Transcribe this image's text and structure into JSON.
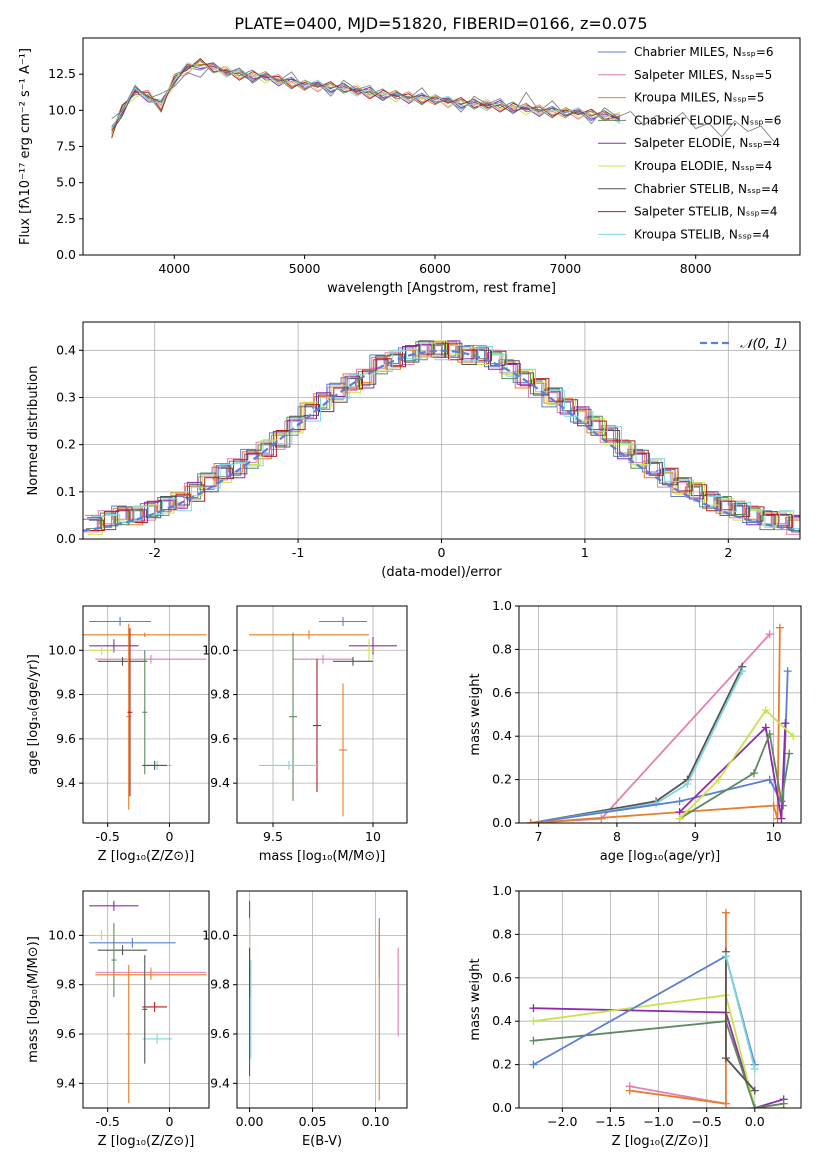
{
  "title": "PLATE=0400, MJD=51820, FIBERID=0166, z=0.075",
  "colors": {
    "chabrier_miles": "#5b7fd4",
    "salpeter_miles": "#e27fb4",
    "kroupa_miles": "#e87d2c",
    "chabrier_elodie": "#5f8a5f",
    "salpeter_elodie": "#8f2aa8",
    "kroupa_elodie": "#c8e34c",
    "chabrier_stelib": "#555555",
    "salpeter_stelib": "#b01e1e",
    "kroupa_stelib": "#7fd6dc",
    "grid": "#b0b0b0"
  },
  "chart_data": [
    {
      "id": "spectrum",
      "type": "line",
      "xlabel": "wavelength [Angstrom, rest frame]",
      "ylabel": "Flux [fλ10⁻¹⁷ erg cm⁻² s⁻¹ A⁻¹]",
      "xlim": [
        3300,
        8800
      ],
      "ylim": [
        0,
        15
      ],
      "xticks": [
        4000,
        5000,
        6000,
        7000,
        8000
      ],
      "yticks": [
        0.0,
        2.5,
        5.0,
        7.5,
        10.0,
        12.5
      ],
      "grid": false,
      "legend_position": "top-right",
      "data_line": {
        "x": [
          3520,
          3600,
          3700,
          3800,
          3900,
          4000,
          4100,
          4200,
          4300,
          4400,
          4500,
          4600,
          4700,
          4800,
          4900,
          5000,
          5100,
          5200,
          5300,
          5400,
          5500,
          5600,
          5700,
          5800,
          5900,
          6000,
          6100,
          6200,
          6300,
          6400,
          6500,
          6600,
          6700,
          6800,
          6900,
          7000,
          7100,
          7200,
          7300,
          7400,
          7500,
          7600,
          7700,
          7800,
          7900,
          8000,
          8100,
          8200,
          8300,
          8400,
          8500,
          8600
        ],
        "y": [
          9.0,
          10.5,
          11.5,
          11.0,
          10.5,
          12.0,
          12.5,
          13.0,
          12.8,
          12.6,
          12.5,
          12.4,
          12.3,
          12.2,
          12.0,
          11.8,
          11.8,
          11.7,
          11.6,
          11.5,
          11.3,
          11.2,
          11.0,
          11.0,
          10.9,
          10.8,
          10.7,
          10.6,
          10.5,
          10.5,
          10.4,
          10.3,
          11.0,
          10.1,
          10.0,
          10.0,
          9.9,
          9.8,
          9.7,
          9.6,
          9.5,
          9.5,
          9.4,
          9.3,
          9.2,
          9.1,
          9.0,
          8.9,
          8.8,
          8.6,
          8.5,
          8.4
        ]
      },
      "model_line": {
        "x": [
          3520,
          3600,
          3700,
          3800,
          3900,
          4000,
          4100,
          4200,
          4300,
          4400,
          4500,
          4600,
          4700,
          4800,
          4900,
          5000,
          5100,
          5200,
          5300,
          5400,
          5500,
          5600,
          5700,
          5800,
          5900,
          6000,
          6100,
          6200,
          6300,
          6400,
          6500,
          6600,
          6700,
          6800,
          6900,
          7000,
          7100,
          7200,
          7300,
          7420
        ],
        "y": [
          8.5,
          10.0,
          11.3,
          11.0,
          10.3,
          12.2,
          12.9,
          13.2,
          12.9,
          12.7,
          12.5,
          12.4,
          12.3,
          12.1,
          11.9,
          11.8,
          11.7,
          11.6,
          11.5,
          11.4,
          11.2,
          11.1,
          11.0,
          10.9,
          10.8,
          10.8,
          10.6,
          10.5,
          10.4,
          10.4,
          10.3,
          10.2,
          10.1,
          10.0,
          9.9,
          9.9,
          9.8,
          9.7,
          9.6,
          9.5
        ]
      },
      "legend": [
        "Chabrier MILES, Nₛₛₚ=6",
        "Salpeter MILES, Nₛₛₚ=5",
        "Kroupa MILES, Nₛₛₚ=5",
        "Chabrier ELODIE, Nₛₛₚ=6",
        "Salpeter ELODIE, Nₛₛₚ=4",
        "Kroupa ELODIE, Nₛₛₚ=4",
        "Chabrier STELIB, Nₛₛₚ=4",
        "Salpeter STELIB, Nₛₛₚ=4",
        "Kroupa STELIB, Nₛₛₚ=4"
      ],
      "legend_keys": [
        "chabrier_miles",
        "salpeter_miles",
        "kroupa_miles",
        "chabrier_elodie",
        "salpeter_elodie",
        "kroupa_elodie",
        "chabrier_stelib",
        "salpeter_stelib",
        "kroupa_stelib"
      ]
    },
    {
      "id": "residuals",
      "type": "line",
      "xlabel": "(data-model)/error",
      "ylabel": "Normed distribution",
      "xlim": [
        -2.5,
        2.5
      ],
      "ylim": [
        0,
        0.46
      ],
      "xticks": [
        -2,
        -1,
        0,
        1,
        2
      ],
      "ytick_values": [
        0.0,
        0.1,
        0.2,
        0.3,
        0.4
      ],
      "ytick_labels": [
        "0.0",
        "0.1",
        "0.2",
        "0.3",
        "0.4"
      ],
      "grid": true,
      "legend": "𝒩(0, 1)",
      "legend_position": "top-right",
      "bin_width": 0.1,
      "histogram_x_start": -2.5,
      "histogram": [
        0.03,
        0.04,
        0.05,
        0.05,
        0.06,
        0.07,
        0.08,
        0.1,
        0.12,
        0.14,
        0.15,
        0.17,
        0.19,
        0.21,
        0.24,
        0.27,
        0.29,
        0.31,
        0.33,
        0.34,
        0.37,
        0.38,
        0.39,
        0.4,
        0.4,
        0.4,
        0.39,
        0.39,
        0.38,
        0.36,
        0.34,
        0.32,
        0.3,
        0.28,
        0.26,
        0.24,
        0.22,
        0.19,
        0.17,
        0.15,
        0.13,
        0.11,
        0.1,
        0.08,
        0.07,
        0.06,
        0.05,
        0.04,
        0.04,
        0.03
      ]
    },
    {
      "id": "age-vs-z",
      "type": "scatter",
      "xlabel": "Z [log₁₀(Z/Z⊙)]",
      "ylabel": "age  [log₁₀(age/yr)]",
      "xlim": [
        -0.7,
        0.32
      ],
      "ylim": [
        9.22,
        10.2
      ],
      "xticks": [
        -0.5,
        0.0
      ],
      "ytick_values": [
        9.4,
        9.6,
        9.8,
        10.0
      ],
      "ytick_labels": [
        "9.4",
        "9.6",
        "9.8",
        "10.0"
      ],
      "grid": true,
      "points": [
        {
          "key": "chabrier_miles",
          "x": -0.4,
          "y": 10.13,
          "xerr": 0.25,
          "yerr": 0.02
        },
        {
          "key": "kroupa_miles",
          "x": -0.2,
          "y": 10.07,
          "xerr": 0.5,
          "yerr": 0.01
        },
        {
          "key": "salpeter_elodie",
          "x": -0.45,
          "y": 10.02,
          "xerr": 0.2,
          "yerr": 0.03
        },
        {
          "key": "kroupa_elodie",
          "x": -0.55,
          "y": 10.0,
          "xerr": 0.1,
          "yerr": 0.02
        },
        {
          "key": "salpeter_miles",
          "x": -0.15,
          "y": 9.96,
          "xerr": 0.45,
          "yerr": 0.02
        },
        {
          "key": "chabrier_stelib",
          "x": -0.38,
          "y": 9.95,
          "xerr": 0.2,
          "yerr": 0.02
        },
        {
          "key": "kroupa_miles",
          "x": -0.33,
          "y": 9.7,
          "xerr": 0.02,
          "yerr": 0.42
        },
        {
          "key": "chabrier_elodie",
          "x": -0.2,
          "y": 9.72,
          "xerr": 0.02,
          "yerr": 0.28
        },
        {
          "key": "salpeter_stelib",
          "x": -0.32,
          "y": 9.72,
          "xerr": 0.02,
          "yerr": 0.38
        },
        {
          "key": "kroupa_stelib",
          "x": -0.1,
          "y": 9.48,
          "xerr": 0.12,
          "yerr": 0.02
        },
        {
          "key": "chabrier_stelib",
          "x": -0.12,
          "y": 9.48,
          "xerr": 0.1,
          "yerr": 0.02
        }
      ]
    },
    {
      "id": "age-vs-mass",
      "type": "scatter",
      "xlabel": "mass [log₁₀(M/M⊙)]",
      "ylabel": "",
      "xlim": [
        9.32,
        10.17
      ],
      "ylim": [
        9.22,
        10.2
      ],
      "xticks": [
        9.5,
        10.0
      ],
      "ytick_values": [
        9.4,
        9.6,
        9.8,
        10.0
      ],
      "ytick_labels": [
        "9.4",
        "9.6",
        "9.8",
        "10.0"
      ],
      "grid": true,
      "points": [
        {
          "key": "chabrier_miles",
          "x": 9.85,
          "y": 10.13,
          "xerr": 0.12,
          "yerr": 0.02
        },
        {
          "key": "kroupa_miles",
          "x": 9.68,
          "y": 10.07,
          "xerr": 0.3,
          "yerr": 0.02
        },
        {
          "key": "salpeter_elodie",
          "x": 10.0,
          "y": 10.02,
          "xerr": 0.12,
          "yerr": 0.04
        },
        {
          "key": "kroupa_elodie",
          "x": 9.98,
          "y": 10.0,
          "xerr": 0.02,
          "yerr": 0.05
        },
        {
          "key": "salpeter_miles",
          "x": 9.75,
          "y": 9.96,
          "xerr": 0.15,
          "yerr": 0.02
        },
        {
          "key": "chabrier_stelib",
          "x": 9.9,
          "y": 9.95,
          "xerr": 0.1,
          "yerr": 0.02
        },
        {
          "key": "chabrier_elodie",
          "x": 9.6,
          "y": 9.7,
          "xerr": 0.02,
          "yerr": 0.38
        },
        {
          "key": "salpeter_stelib",
          "x": 9.72,
          "y": 9.66,
          "xerr": 0.02,
          "yerr": 0.3
        },
        {
          "key": "kroupa_stelib",
          "x": 9.58,
          "y": 9.48,
          "xerr": 0.15,
          "yerr": 0.02
        },
        {
          "key": "kroupa_miles",
          "x": 9.85,
          "y": 9.55,
          "xerr": 0.02,
          "yerr": 0.3
        }
      ]
    },
    {
      "id": "weight-vs-age",
      "type": "line",
      "xlabel": "age  [log₁₀(age/yr)]",
      "ylabel": "mass weight",
      "xlim": [
        6.75,
        10.35
      ],
      "ylim": [
        0,
        1
      ],
      "xticks": [
        7,
        8,
        9,
        10
      ],
      "ytick_values": [
        0.0,
        0.2,
        0.4,
        0.6,
        0.8,
        1.0
      ],
      "ytick_labels": [
        "0.0",
        "0.2",
        "0.4",
        "0.6",
        "0.8",
        "1.0"
      ],
      "grid": true,
      "series": [
        {
          "key": "salpeter_miles",
          "x": [
            6.9,
            7.8,
            9.95
          ],
          "y": [
            0.0,
            0.02,
            0.87
          ]
        },
        {
          "key": "chabrier_stelib",
          "x": [
            6.9,
            8.5,
            8.9,
            9.6
          ],
          "y": [
            0.0,
            0.1,
            0.2,
            0.72
          ]
        },
        {
          "key": "kroupa_stelib",
          "x": [
            6.9,
            8.5,
            8.9,
            9.6
          ],
          "y": [
            0.0,
            0.09,
            0.18,
            0.7
          ]
        },
        {
          "key": "chabrier_miles",
          "x": [
            6.9,
            8.8,
            9.95,
            10.12,
            10.18
          ],
          "y": [
            0.0,
            0.1,
            0.2,
            0.08,
            0.7
          ]
        },
        {
          "key": "kroupa_miles",
          "x": [
            6.9,
            8.8,
            10.0,
            10.05,
            10.08
          ],
          "y": [
            0.0,
            0.05,
            0.08,
            0.02,
            0.9
          ]
        },
        {
          "key": "salpeter_elodie",
          "x": [
            8.8,
            9.9,
            10.1,
            10.15
          ],
          "y": [
            0.05,
            0.44,
            0.02,
            0.46
          ]
        },
        {
          "key": "chabrier_elodie",
          "x": [
            8.8,
            9.75,
            9.95,
            10.1,
            10.2
          ],
          "y": [
            0.02,
            0.23,
            0.41,
            0.1,
            0.32
          ]
        },
        {
          "key": "kroupa_elodie",
          "x": [
            8.8,
            9.3,
            9.9,
            10.25
          ],
          "y": [
            0.02,
            0.2,
            0.52,
            0.4
          ]
        }
      ]
    },
    {
      "id": "mass-vs-z",
      "type": "scatter",
      "xlabel": "Z [log₁₀(Z/Z⊙)]",
      "ylabel": "mass [log₁₀(M/M⊙)]",
      "xlim": [
        -0.7,
        0.32
      ],
      "ylim": [
        9.3,
        10.18
      ],
      "xticks": [
        -0.5,
        0.0
      ],
      "ytick_values": [
        9.4,
        9.6,
        9.8,
        10.0
      ],
      "ytick_labels": [
        "9.4",
        "9.6",
        "9.8",
        "10.0"
      ],
      "grid": true,
      "points": [
        {
          "key": "salpeter_elodie",
          "x": -0.45,
          "y": 10.12,
          "xerr": 0.2,
          "yerr": 0.02
        },
        {
          "key": "kroupa_elodie",
          "x": -0.55,
          "y": 10.0,
          "xerr": 0.1,
          "yerr": 0.02
        },
        {
          "key": "chabrier_miles",
          "x": -0.3,
          "y": 9.97,
          "xerr": 0.35,
          "yerr": 0.02
        },
        {
          "key": "chabrier_stelib",
          "x": -0.38,
          "y": 9.94,
          "xerr": 0.2,
          "yerr": 0.02
        },
        {
          "key": "chabrier_elodie",
          "x": -0.45,
          "y": 9.9,
          "xerr": 0.02,
          "yerr": 0.15
        },
        {
          "key": "salpeter_miles",
          "x": -0.15,
          "y": 9.85,
          "xerr": 0.45,
          "yerr": 0.02
        },
        {
          "key": "kroupa_miles",
          "x": -0.15,
          "y": 9.84,
          "xerr": 0.45,
          "yerr": 0.02
        },
        {
          "key": "salpeter_stelib",
          "x": -0.12,
          "y": 9.71,
          "xerr": 0.1,
          "yerr": 0.02
        },
        {
          "key": "kroupa_miles",
          "x": -0.33,
          "y": 9.6,
          "xerr": 0.02,
          "yerr": 0.28
        },
        {
          "key": "kroupa_stelib",
          "x": -0.1,
          "y": 9.58,
          "xerr": 0.12,
          "yerr": 0.02
        },
        {
          "key": "chabrier_stelib",
          "x": -0.2,
          "y": 9.7,
          "xerr": 0.02,
          "yerr": 0.22
        }
      ]
    },
    {
      "id": "mass-vs-ebv",
      "type": "scatter",
      "xlabel": "E(B-V)",
      "ylabel": "",
      "xlim": [
        -0.01,
        0.125
      ],
      "ylim": [
        9.3,
        10.18
      ],
      "xticks": [
        0.0,
        0.05,
        0.1
      ],
      "xtick_labels": [
        "0.00",
        "0.05",
        "0.10"
      ],
      "ytick_values": [
        9.4,
        9.6,
        9.8,
        10.0
      ],
      "ytick_labels": [
        "9.4",
        "9.6",
        "9.8",
        "10.0"
      ],
      "grid": true,
      "points": [
        {
          "key": "salpeter_elodie",
          "x": 0.0,
          "y": 10.0,
          "xerr": 0.0,
          "yerr": 0.14
        },
        {
          "key": "kroupa_elodie",
          "x": 0.0,
          "y": 9.95,
          "xerr": 0.0,
          "yerr": 0.12
        },
        {
          "key": "chabrier_stelib",
          "x": 0.0,
          "y": 9.65,
          "xerr": 0.0,
          "yerr": 0.22
        },
        {
          "key": "salpeter_stelib",
          "x": 0.0,
          "y": 9.85,
          "xerr": 0.0,
          "yerr": 0.1
        },
        {
          "key": "kroupa_stelib",
          "x": 0.001,
          "y": 9.7,
          "xerr": 0.0,
          "yerr": 0.2
        },
        {
          "key": "chabrier_miles",
          "x": 0.103,
          "y": 9.95,
          "xerr": 0.0,
          "yerr": 0.12
        },
        {
          "key": "kroupa_miles",
          "x": 0.103,
          "y": 9.68,
          "xerr": 0.0,
          "yerr": 0.35
        },
        {
          "key": "salpeter_miles",
          "x": 0.118,
          "y": 9.77,
          "xerr": 0.0,
          "yerr": 0.18
        }
      ]
    },
    {
      "id": "weight-vs-z",
      "type": "line",
      "xlabel": "Z [log₁₀(Z/Z⊙)]",
      "ylabel": "mass weight",
      "xlim": [
        -2.45,
        0.48
      ],
      "ylim": [
        0,
        1
      ],
      "xticks": [
        -2.0,
        -1.5,
        -1.0,
        -0.5,
        0.0
      ],
      "xtick_labels": [
        "−2.0",
        "−1.5",
        "−1.0",
        "−0.5",
        "0.0"
      ],
      "ytick_values": [
        0.0,
        0.2,
        0.4,
        0.6,
        0.8,
        1.0
      ],
      "ytick_labels": [
        "0.0",
        "0.2",
        "0.4",
        "0.6",
        "0.8",
        "1.0"
      ],
      "grid": true,
      "series": [
        {
          "key": "salpeter_elodie",
          "x": [
            -2.3,
            -0.3,
            0.0,
            0.3
          ],
          "y": [
            0.46,
            0.44,
            0.0,
            0.04
          ]
        },
        {
          "key": "kroupa_elodie",
          "x": [
            -2.3,
            -0.3,
            0.0,
            0.3
          ],
          "y": [
            0.4,
            0.52,
            0.0,
            0.02
          ]
        },
        {
          "key": "chabrier_elodie",
          "x": [
            -2.3,
            -0.3,
            0.0,
            0.3
          ],
          "y": [
            0.31,
            0.4,
            0.0,
            0.02
          ]
        },
        {
          "key": "chabrier_miles",
          "x": [
            -2.3,
            -0.3,
            0.0
          ],
          "y": [
            0.2,
            0.7,
            0.2
          ]
        },
        {
          "key": "salpeter_miles",
          "x": [
            -1.3,
            -0.3
          ],
          "y": [
            0.1,
            0.02
          ]
        },
        {
          "key": "kroupa_miles",
          "x": [
            -1.3,
            -0.3,
            -0.3
          ],
          "y": [
            0.08,
            0.02,
            0.9
          ]
        },
        {
          "key": "chabrier_stelib",
          "x": [
            -0.3,
            -0.3,
            0.0
          ],
          "y": [
            0.72,
            0.23,
            0.08
          ]
        },
        {
          "key": "kroupa_stelib",
          "x": [
            -0.3,
            0.0
          ],
          "y": [
            0.7,
            0.18
          ]
        }
      ]
    }
  ]
}
